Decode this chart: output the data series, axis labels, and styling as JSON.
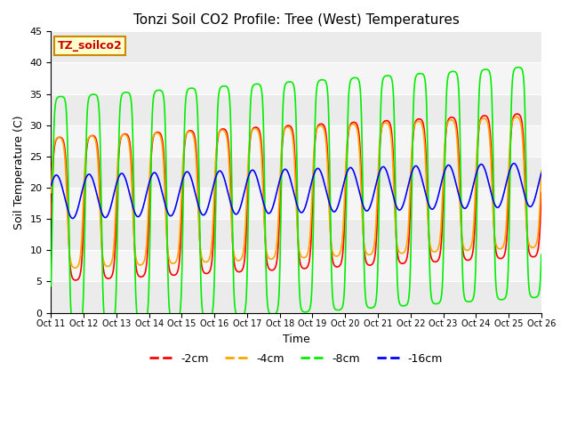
{
  "title": "Tonzi Soil CO2 Profile: Tree (West) Temperatures",
  "ylabel": "Soil Temperature (C)",
  "xlabel": "Time",
  "legend_label": "TZ_soilco2",
  "ylim": [
    0,
    45
  ],
  "series": [
    {
      "label": "-2cm",
      "color": "#ff0000"
    },
    {
      "label": "-4cm",
      "color": "#ffa500"
    },
    {
      "label": "-8cm",
      "color": "#00ee00"
    },
    {
      "label": "-16cm",
      "color": "#0000ff"
    }
  ],
  "xtick_labels": [
    "Oct 11",
    "Oct 12",
    "Oct 13",
    "Oct 14",
    "Oct 15",
    "Oct 16",
    "Oct 17",
    "Oct 18",
    "Oct 19",
    "Oct 20",
    "Oct 21",
    "Oct 22",
    "Oct 23",
    "Oct 24",
    "Oct 25",
    "Oct 26"
  ],
  "bg_bands": [
    {
      "ymin": 0,
      "ymax": 5,
      "color": "#ebebeb"
    },
    {
      "ymin": 5,
      "ymax": 10,
      "color": "#f5f5f5"
    },
    {
      "ymin": 10,
      "ymax": 15,
      "color": "#ebebeb"
    },
    {
      "ymin": 15,
      "ymax": 20,
      "color": "#f5f5f5"
    },
    {
      "ymin": 20,
      "ymax": 25,
      "color": "#ebebeb"
    },
    {
      "ymin": 25,
      "ymax": 30,
      "color": "#f5f5f5"
    },
    {
      "ymin": 30,
      "ymax": 35,
      "color": "#ebebeb"
    },
    {
      "ymin": 35,
      "ymax": 40,
      "color": "#f5f5f5"
    },
    {
      "ymin": 40,
      "ymax": 45,
      "color": "#ebebeb"
    }
  ],
  "n_days": 15,
  "points_per_day": 288
}
